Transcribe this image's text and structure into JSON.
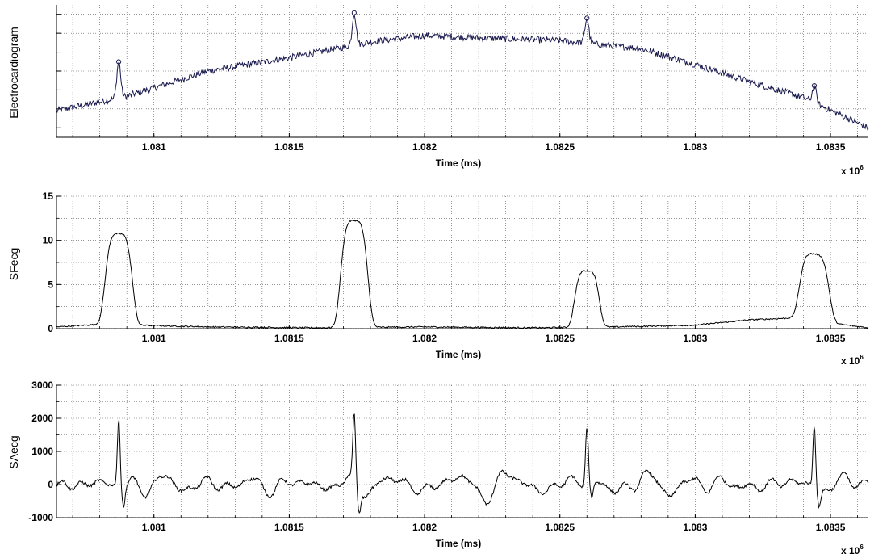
{
  "chart_data": [
    {
      "type": "line",
      "ylabel": "Electrocardiogram",
      "xlabel": "Time (ms)",
      "x_exponent": "x 10",
      "x_exponent_power": "6",
      "xlim": [
        1080640,
        1083640
      ],
      "x_ticks": [
        1081000,
        1081500,
        1082000,
        1082500,
        1083000,
        1083500
      ],
      "x_tick_labels": [
        "1.081",
        "1.0815",
        "1.082",
        "1.0825",
        "1.083",
        "1.0835"
      ],
      "ylim": [
        0,
        1
      ],
      "y_tick_count": 7,
      "y_tick_labels": [],
      "grid": true,
      "line_color": "#1a1a4e",
      "baseline": [
        [
          1080640,
          0.2
        ],
        [
          1080900,
          0.31
        ],
        [
          1081200,
          0.5
        ],
        [
          1081500,
          0.6
        ],
        [
          1081800,
          0.72
        ],
        [
          1082000,
          0.77
        ],
        [
          1082200,
          0.75
        ],
        [
          1082500,
          0.73
        ],
        [
          1082800,
          0.67
        ],
        [
          1083000,
          0.55
        ],
        [
          1083200,
          0.42
        ],
        [
          1083400,
          0.3
        ],
        [
          1083640,
          0.07
        ]
      ],
      "peaks": [
        {
          "x": 1080870,
          "y": 0.57
        },
        {
          "x": 1081740,
          "y": 0.94
        },
        {
          "x": 1082600,
          "y": 0.9
        },
        {
          "x": 1083440,
          "y": 0.39
        }
      ],
      "noise_amplitude": 0.025
    },
    {
      "type": "line",
      "ylabel": "SFecg",
      "xlabel": "Time (ms)",
      "x_exponent": "x 10",
      "x_exponent_power": "6",
      "xlim": [
        1080640,
        1083640
      ],
      "x_ticks": [
        1081000,
        1081500,
        1082000,
        1082500,
        1083000,
        1083500
      ],
      "x_tick_labels": [
        "1.081",
        "1.0815",
        "1.082",
        "1.0825",
        "1.083",
        "1.0835"
      ],
      "ylim": [
        0,
        15
      ],
      "y_ticks": [
        0,
        5,
        10,
        15
      ],
      "y_tick_labels": [
        "0",
        "5",
        "10",
        "15"
      ],
      "grid": true,
      "line_color": "#000000",
      "floor": [
        [
          1080640,
          0.2
        ],
        [
          1080800,
          0.5
        ],
        [
          1081200,
          0.2
        ],
        [
          1081600,
          0.1
        ],
        [
          1082000,
          0.2
        ],
        [
          1082400,
          0.1
        ],
        [
          1082700,
          0.2
        ],
        [
          1083000,
          0.4
        ],
        [
          1083200,
          1.0
        ],
        [
          1083350,
          1.2
        ],
        [
          1083640,
          0.1
        ]
      ],
      "bumps": [
        {
          "center": 1080870,
          "height": 10.3,
          "halfwidth": 55
        },
        {
          "center": 1081740,
          "height": 12.1,
          "halfwidth": 55
        },
        {
          "center": 1082600,
          "height": 6.4,
          "halfwidth": 50
        },
        {
          "center": 1083440,
          "height": 7.6,
          "halfwidth": 60
        }
      ]
    },
    {
      "type": "line",
      "ylabel": "SAecg",
      "xlabel": "Time (ms)",
      "x_exponent": "x 10",
      "x_exponent_power": "6",
      "xlim": [
        1080640,
        1083640
      ],
      "x_ticks": [
        1081000,
        1081500,
        1082000,
        1082500,
        1083000,
        1083500
      ],
      "x_tick_labels": [
        "1.081",
        "1.0815",
        "1.082",
        "1.0825",
        "1.083",
        "1.0835"
      ],
      "ylim": [
        -1000,
        3000
      ],
      "y_ticks": [
        -1000,
        0,
        1000,
        2000,
        3000
      ],
      "y_tick_labels": [
        "-1000",
        "0",
        "1000",
        "2000",
        "3000"
      ],
      "grid": true,
      "line_color": "#000000",
      "spikes": [
        {
          "x": 1080870,
          "y": 2050,
          "neg": -550
        },
        {
          "x": 1081740,
          "y": 1900,
          "neg": -750
        },
        {
          "x": 1082600,
          "y": 1750,
          "neg": -500
        },
        {
          "x": 1083440,
          "y": 1950,
          "neg": -500
        }
      ],
      "noise_amplitude": 250
    }
  ]
}
